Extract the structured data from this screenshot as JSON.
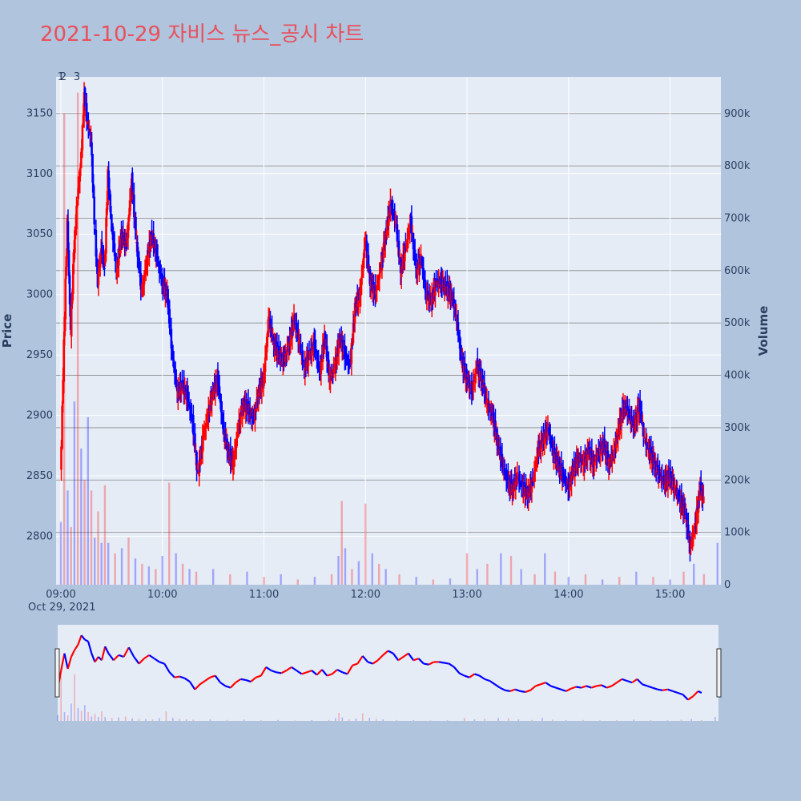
{
  "chart_data": {
    "type": "candlestick",
    "title": "2021-10-29 자비스 뉴스_공시 차트",
    "ylabel": "Price",
    "y2label": "Volume",
    "date_label": "Oct 29, 2021",
    "x_ticks": [
      "09:00",
      "10:00",
      "11:00",
      "12:00",
      "13:00",
      "14:00",
      "15:00"
    ],
    "y_ticks": [
      2800,
      2850,
      2900,
      2950,
      3000,
      3050,
      3100,
      3150
    ],
    "y2_ticks": [
      "0",
      "100k",
      "200k",
      "300k",
      "400k",
      "500k",
      "600k",
      "700k",
      "800k",
      "900k"
    ],
    "ylim": [
      2760,
      3180
    ],
    "y2lim": [
      0,
      970000
    ],
    "xlim": [
      "09:00",
      "15:30"
    ],
    "annotations": [
      "1",
      "2",
      "3"
    ],
    "colors": {
      "up": "#ff0000",
      "down": "#0000ff",
      "background": "#e5ecf6",
      "paper": "#b0c4de",
      "title": "#e8505b"
    },
    "price_path": [
      [
        "09:00",
        2850
      ],
      [
        "09:02",
        2960
      ],
      [
        "09:04",
        3060
      ],
      [
        "09:06",
        2970
      ],
      [
        "09:08",
        3040
      ],
      [
        "09:10",
        3080
      ],
      [
        "09:12",
        3110
      ],
      [
        "09:14",
        3165
      ],
      [
        "09:16",
        3140
      ],
      [
        "09:18",
        3130
      ],
      [
        "09:20",
        3060
      ],
      [
        "09:22",
        3010
      ],
      [
        "09:24",
        3040
      ],
      [
        "09:26",
        3020
      ],
      [
        "09:28",
        3100
      ],
      [
        "09:30",
        3060
      ],
      [
        "09:33",
        3020
      ],
      [
        "09:36",
        3050
      ],
      [
        "09:39",
        3040
      ],
      [
        "09:42",
        3095
      ],
      [
        "09:45",
        3040
      ],
      [
        "09:48",
        3000
      ],
      [
        "09:51",
        3030
      ],
      [
        "09:54",
        3050
      ],
      [
        "09:57",
        3030
      ],
      [
        "10:00",
        3010
      ],
      [
        "10:03",
        3000
      ],
      [
        "10:06",
        2950
      ],
      [
        "10:09",
        2920
      ],
      [
        "10:12",
        2925
      ],
      [
        "10:15",
        2915
      ],
      [
        "10:18",
        2895
      ],
      [
        "10:21",
        2850
      ],
      [
        "10:24",
        2880
      ],
      [
        "10:27",
        2900
      ],
      [
        "10:30",
        2920
      ],
      [
        "10:33",
        2930
      ],
      [
        "10:36",
        2890
      ],
      [
        "10:39",
        2870
      ],
      [
        "10:42",
        2860
      ],
      [
        "10:45",
        2890
      ],
      [
        "10:48",
        2910
      ],
      [
        "10:51",
        2905
      ],
      [
        "10:54",
        2895
      ],
      [
        "10:57",
        2920
      ],
      [
        "11:00",
        2930
      ],
      [
        "11:03",
        2980
      ],
      [
        "11:06",
        2960
      ],
      [
        "11:09",
        2950
      ],
      [
        "11:12",
        2945
      ],
      [
        "11:15",
        2960
      ],
      [
        "11:18",
        2980
      ],
      [
        "11:21",
        2960
      ],
      [
        "11:24",
        2940
      ],
      [
        "11:27",
        2950
      ],
      [
        "11:30",
        2960
      ],
      [
        "11:33",
        2935
      ],
      [
        "11:36",
        2965
      ],
      [
        "11:39",
        2930
      ],
      [
        "11:42",
        2940
      ],
      [
        "11:45",
        2965
      ],
      [
        "11:48",
        2950
      ],
      [
        "11:51",
        2940
      ],
      [
        "11:54",
        2990
      ],
      [
        "11:57",
        3000
      ],
      [
        "12:00",
        3045
      ],
      [
        "12:03",
        3010
      ],
      [
        "12:06",
        3000
      ],
      [
        "12:09",
        3020
      ],
      [
        "12:12",
        3050
      ],
      [
        "12:15",
        3075
      ],
      [
        "12:18",
        3060
      ],
      [
        "12:21",
        3020
      ],
      [
        "12:24",
        3040
      ],
      [
        "12:27",
        3060
      ],
      [
        "12:30",
        3020
      ],
      [
        "12:33",
        3030
      ],
      [
        "12:36",
        3000
      ],
      [
        "12:39",
        2995
      ],
      [
        "12:42",
        3010
      ],
      [
        "12:45",
        3010
      ],
      [
        "12:48",
        3005
      ],
      [
        "12:51",
        3000
      ],
      [
        "12:54",
        2980
      ],
      [
        "12:57",
        2945
      ],
      [
        "13:00",
        2930
      ],
      [
        "13:03",
        2920
      ],
      [
        "13:06",
        2940
      ],
      [
        "13:09",
        2930
      ],
      [
        "13:12",
        2910
      ],
      [
        "13:15",
        2900
      ],
      [
        "13:18",
        2880
      ],
      [
        "13:21",
        2860
      ],
      [
        "13:24",
        2845
      ],
      [
        "13:27",
        2840
      ],
      [
        "13:30",
        2850
      ],
      [
        "13:33",
        2840
      ],
      [
        "13:36",
        2835
      ],
      [
        "13:39",
        2845
      ],
      [
        "13:42",
        2870
      ],
      [
        "13:45",
        2880
      ],
      [
        "13:48",
        2890
      ],
      [
        "13:51",
        2870
      ],
      [
        "13:54",
        2860
      ],
      [
        "13:57",
        2850
      ],
      [
        "14:00",
        2840
      ],
      [
        "14:03",
        2855
      ],
      [
        "14:06",
        2865
      ],
      [
        "14:09",
        2860
      ],
      [
        "14:12",
        2870
      ],
      [
        "14:15",
        2860
      ],
      [
        "14:18",
        2870
      ],
      [
        "14:21",
        2875
      ],
      [
        "14:24",
        2860
      ],
      [
        "14:27",
        2870
      ],
      [
        "14:30",
        2890
      ],
      [
        "14:33",
        2910
      ],
      [
        "14:36",
        2900
      ],
      [
        "14:39",
        2890
      ],
      [
        "14:42",
        2910
      ],
      [
        "14:45",
        2880
      ],
      [
        "14:48",
        2870
      ],
      [
        "14:51",
        2860
      ],
      [
        "14:54",
        2850
      ],
      [
        "14:57",
        2845
      ],
      [
        "15:00",
        2850
      ],
      [
        "15:03",
        2840
      ],
      [
        "15:06",
        2830
      ],
      [
        "15:09",
        2820
      ],
      [
        "15:12",
        2790
      ],
      [
        "15:15",
        2810
      ],
      [
        "15:18",
        2840
      ],
      [
        "15:20",
        2830
      ]
    ],
    "volume_bars": [
      [
        "09:00",
        120000
      ],
      [
        "09:02",
        900000
      ],
      [
        "09:04",
        180000
      ],
      [
        "09:06",
        110000
      ],
      [
        "09:08",
        350000
      ],
      [
        "09:10",
        940000
      ],
      [
        "09:12",
        260000
      ],
      [
        "09:14",
        200000
      ],
      [
        "09:16",
        320000
      ],
      [
        "09:18",
        180000
      ],
      [
        "09:20",
        90000
      ],
      [
        "09:22",
        140000
      ],
      [
        "09:24",
        80000
      ],
      [
        "09:26",
        190000
      ],
      [
        "09:28",
        80000
      ],
      [
        "09:32",
        60000
      ],
      [
        "09:36",
        70000
      ],
      [
        "09:40",
        90000
      ],
      [
        "09:44",
        50000
      ],
      [
        "09:48",
        40000
      ],
      [
        "09:52",
        35000
      ],
      [
        "09:56",
        30000
      ],
      [
        "10:00",
        55000
      ],
      [
        "10:04",
        195000
      ],
      [
        "10:08",
        60000
      ],
      [
        "10:12",
        40000
      ],
      [
        "10:16",
        30000
      ],
      [
        "10:20",
        25000
      ],
      [
        "10:30",
        30000
      ],
      [
        "10:40",
        20000
      ],
      [
        "10:50",
        25000
      ],
      [
        "11:00",
        15000
      ],
      [
        "11:10",
        20000
      ],
      [
        "11:20",
        10000
      ],
      [
        "11:30",
        15000
      ],
      [
        "11:40",
        20000
      ],
      [
        "11:44",
        55000
      ],
      [
        "11:46",
        160000
      ],
      [
        "11:48",
        70000
      ],
      [
        "11:52",
        30000
      ],
      [
        "11:56",
        45000
      ],
      [
        "12:00",
        155000
      ],
      [
        "12:04",
        60000
      ],
      [
        "12:08",
        40000
      ],
      [
        "12:12",
        30000
      ],
      [
        "12:20",
        20000
      ],
      [
        "12:30",
        15000
      ],
      [
        "12:40",
        10000
      ],
      [
        "12:50",
        12000
      ],
      [
        "13:00",
        60000
      ],
      [
        "13:06",
        30000
      ],
      [
        "13:12",
        40000
      ],
      [
        "13:20",
        60000
      ],
      [
        "13:26",
        55000
      ],
      [
        "13:32",
        30000
      ],
      [
        "13:40",
        20000
      ],
      [
        "13:46",
        60000
      ],
      [
        "13:52",
        25000
      ],
      [
        "14:00",
        15000
      ],
      [
        "14:10",
        20000
      ],
      [
        "14:20",
        10000
      ],
      [
        "14:30",
        15000
      ],
      [
        "14:40",
        25000
      ],
      [
        "14:50",
        15000
      ],
      [
        "15:00",
        10000
      ],
      [
        "15:08",
        25000
      ],
      [
        "15:14",
        40000
      ],
      [
        "15:20",
        20000
      ],
      [
        "15:28",
        80000
      ]
    ]
  }
}
